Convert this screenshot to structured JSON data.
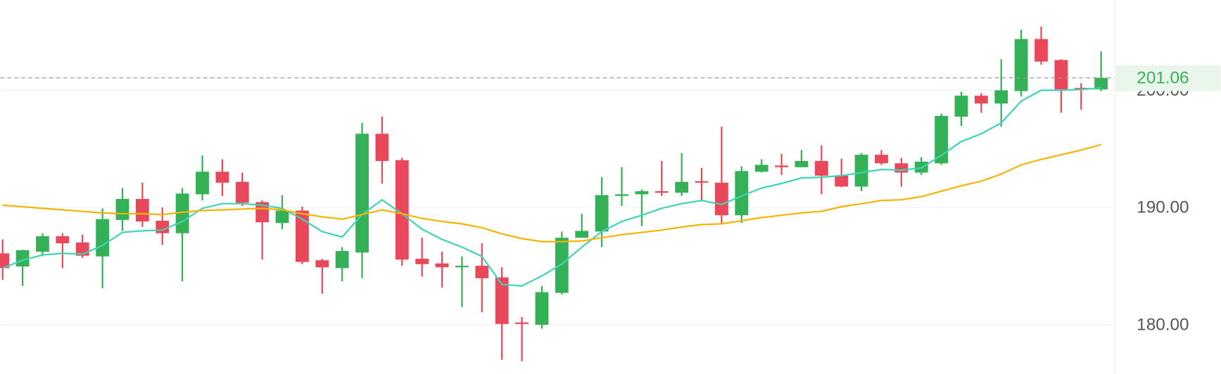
{
  "chart_data": {
    "type": "candlestick",
    "categories": [
      null,
      null,
      null,
      null,
      null,
      null,
      null,
      null,
      null,
      null,
      null,
      null,
      null,
      null,
      null,
      null,
      null,
      null,
      null,
      null,
      null,
      null,
      null,
      null,
      null,
      null,
      null,
      null,
      null,
      null,
      null,
      null,
      null,
      null,
      null,
      null,
      null,
      null,
      null,
      null,
      null,
      null,
      null,
      null,
      null,
      null,
      null,
      null,
      null,
      null,
      null,
      null,
      null,
      null,
      null,
      null
    ],
    "open": [
      186.09,
      184.97,
      186.23,
      187.55,
      187.02,
      185.83,
      188.94,
      190.73,
      188.87,
      187.81,
      191.13,
      193.05,
      192.19,
      190.46,
      188.68,
      189.74,
      185.5,
      184.83,
      186.16,
      196.29,
      194.04,
      185.63,
      185.23,
      184.9,
      185.03,
      184.04,
      180.2,
      180.0,
      182.72,
      187.42,
      187.95,
      190.99,
      191.13,
      191.39,
      191.26,
      192.25,
      192.12,
      189.34,
      193.05,
      193.58,
      193.44,
      193.97,
      192.72,
      191.79,
      194.5,
      193.77,
      192.98,
      193.77,
      197.75,
      199.54,
      198.87,
      199.93,
      204.37,
      202.58,
      200.2,
      200.07
    ],
    "high": [
      187.28,
      186.4,
      187.81,
      187.81,
      187.68,
      189.93,
      191.66,
      192.12,
      190.0,
      191.66,
      194.44,
      194.11,
      192.98,
      190.6,
      191.06,
      190.07,
      185.63,
      186.62,
      197.22,
      197.75,
      194.24,
      187.42,
      186.23,
      185.83,
      186.95,
      184.9,
      180.66,
      183.31,
      187.95,
      189.47,
      192.58,
      193.44,
      191.52,
      193.97,
      194.64,
      193.38,
      196.89,
      193.51,
      194.11,
      194.57,
      194.9,
      195.3,
      194.17,
      194.64,
      194.9,
      194.24,
      194.3,
      198.01,
      199.87,
      199.74,
      202.65,
      205.17,
      205.43,
      202.65,
      200.6,
      203.31
    ],
    "low": [
      183.84,
      183.31,
      185.83,
      184.83,
      185.7,
      183.11,
      188.01,
      188.34,
      186.82,
      183.71,
      190.6,
      190.99,
      190.13,
      185.56,
      188.15,
      185.17,
      182.65,
      183.71,
      183.97,
      192.05,
      185.03,
      184.11,
      183.18,
      181.52,
      181.06,
      177.02,
      176.89,
      179.67,
      182.58,
      187.42,
      186.62,
      190.13,
      188.41,
      190.99,
      190.99,
      190.6,
      188.61,
      188.68,
      192.98,
      192.78,
      193.44,
      191.13,
      191.72,
      191.39,
      193.64,
      191.79,
      192.78,
      193.64,
      196.95,
      198.08,
      196.89,
      199.47,
      202.19,
      198.08,
      198.34,
      199.93
    ],
    "close": [
      184.83,
      186.36,
      187.55,
      186.95,
      185.89,
      189.01,
      190.73,
      188.81,
      187.81,
      191.19,
      193.05,
      192.12,
      190.4,
      188.74,
      189.74,
      185.36,
      184.9,
      186.29,
      196.29,
      193.97,
      185.56,
      185.17,
      184.9,
      185.03,
      183.97,
      180.07,
      180.07,
      182.78,
      187.42,
      188.01,
      191.06,
      191.13,
      191.39,
      191.26,
      192.19,
      192.12,
      189.34,
      193.11,
      193.64,
      193.44,
      193.97,
      192.72,
      191.79,
      194.5,
      193.77,
      192.98,
      193.91,
      197.81,
      199.54,
      198.87,
      200.0,
      204.37,
      202.45,
      200.07,
      200.07,
      201.06
    ],
    "up_color": "#34b157",
    "down_color": "#e8485a",
    "series": [
      {
        "color": "#3fd4b6",
        "values": [
          184.83,
          185.5,
          185.96,
          186.09,
          186.03,
          186.76,
          187.88,
          188.01,
          188.08,
          188.81,
          189.93,
          190.33,
          190.33,
          190.2,
          189.93,
          189.01,
          187.95,
          187.48,
          189.4,
          190.66,
          189.47,
          188.15,
          187.28,
          186.62,
          185.83,
          183.44,
          183.31,
          184.17,
          185.17,
          186.62,
          187.95,
          188.81,
          189.34,
          189.93,
          190.33,
          190.6,
          190.26,
          190.99,
          191.66,
          192.05,
          192.52,
          192.58,
          192.72,
          192.98,
          193.25,
          193.18,
          193.38,
          194.44,
          195.63,
          196.29,
          197.22,
          199.07,
          200.0,
          200.0,
          200.07,
          200.2
        ]
      },
      {
        "color": "#f4b400",
        "values": [
          190.2,
          190.07,
          189.93,
          189.8,
          189.67,
          189.54,
          189.47,
          189.47,
          189.4,
          189.6,
          189.74,
          189.8,
          189.87,
          189.93,
          189.8,
          189.47,
          189.21,
          189.01,
          189.4,
          189.8,
          189.47,
          189.07,
          188.81,
          188.61,
          188.28,
          187.75,
          187.35,
          187.09,
          187.09,
          187.15,
          187.42,
          187.68,
          187.88,
          188.08,
          188.34,
          188.54,
          188.61,
          188.87,
          189.14,
          189.34,
          189.54,
          189.67,
          190.07,
          190.33,
          190.6,
          190.66,
          190.93,
          191.39,
          191.85,
          192.25,
          192.85,
          193.64,
          194.11,
          194.5,
          194.9,
          195.36
        ]
      }
    ],
    "ylim": [
      175.8,
      207.7
    ],
    "yticks": [
      {
        "value": 180,
        "label": "180.00"
      },
      {
        "value": 190,
        "label": "190.00"
      },
      {
        "value": 200,
        "label": "200.00"
      }
    ],
    "grid": true,
    "last_price": 201.06,
    "last_price_color": "#34b157"
  }
}
